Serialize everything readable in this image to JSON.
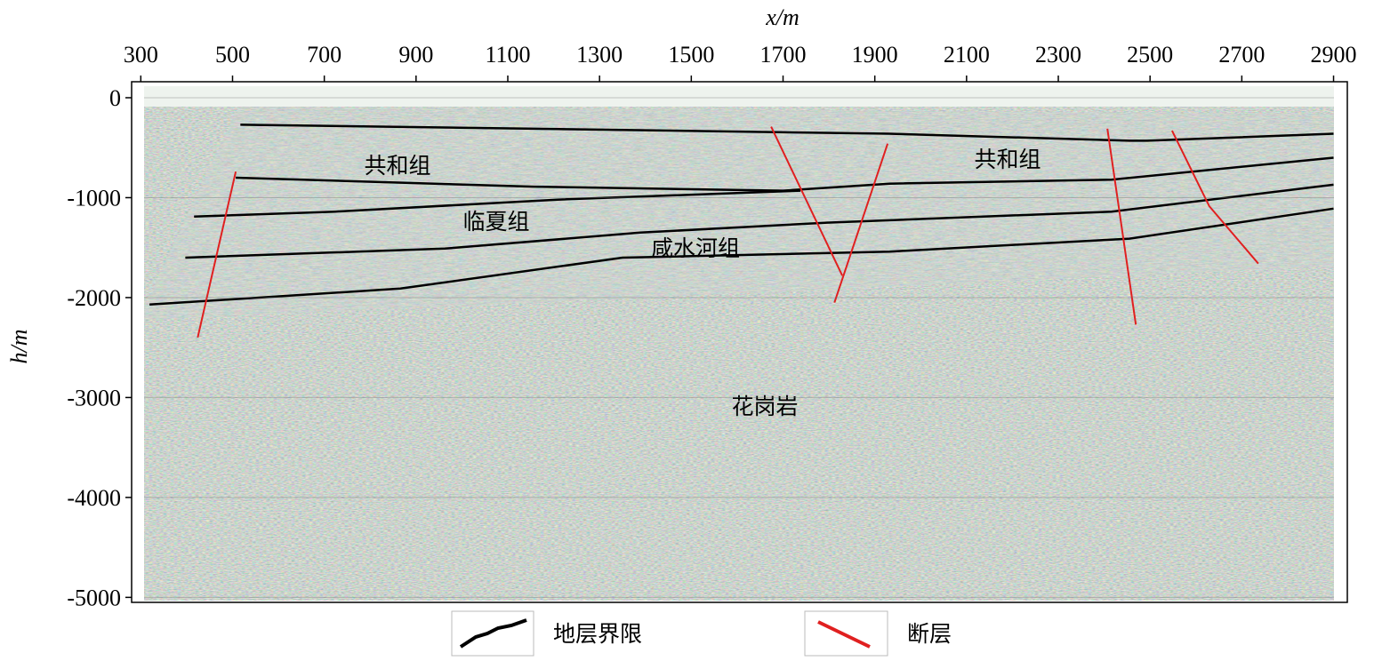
{
  "chart_data": {
    "type": "seismic-section",
    "xlabel": "x/m",
    "ylabel": "h/m",
    "xlim": [
      280,
      2930
    ],
    "xticks": [
      300,
      500,
      700,
      900,
      1100,
      1300,
      1500,
      1700,
      1900,
      2100,
      2300,
      2500,
      2700,
      2900
    ],
    "ylim": [
      -5050,
      160
    ],
    "yticks": [
      0,
      -1000,
      -2000,
      -3000,
      -4000,
      -5000
    ],
    "annotations": [
      "共和组",
      "临夏组",
      "咸水河组",
      "共和组",
      "花岗岩"
    ],
    "legend": [
      {
        "name": "地层界限",
        "color": "#000000"
      },
      {
        "name": "断层",
        "color": "#e02020"
      }
    ],
    "boundaries": [
      {
        "x": [
          517,
          1157,
          1932,
          2455,
          2494,
          2900
        ],
        "values": [
          -270,
          -310,
          -360,
          -430,
          -430,
          -360
        ]
      },
      {
        "x": [
          507,
          1157,
          1700,
          1932,
          2416,
          2900
        ],
        "values": [
          -800,
          -890,
          -930,
          -860,
          -820,
          -600
        ]
      },
      {
        "x": [
          416,
          724,
          1208,
          1738
        ],
        "values": [
          -1190,
          -1140,
          -1020,
          -930
        ]
      },
      {
        "x": [
          397,
          963,
          1389,
          1796,
          2416,
          2900
        ],
        "values": [
          -1600,
          -1510,
          -1350,
          -1250,
          -1140,
          -870
        ]
      },
      {
        "x": [
          319,
          866,
          1350,
          1932,
          2455,
          2900
        ],
        "values": [
          -2070,
          -1910,
          -1600,
          -1540,
          -1410,
          -1110
        ]
      }
    ],
    "faults": [
      {
        "x": [
          507,
          424
        ],
        "values": [
          -740,
          -2400
        ]
      },
      {
        "x": [
          1674,
          1829
        ],
        "values": [
          -290,
          -1780
        ]
      },
      {
        "x": [
          1928,
          1812
        ],
        "values": [
          -460,
          -2050
        ]
      },
      {
        "x": [
          2407,
          2469
        ],
        "values": [
          -310,
          -2270
        ]
      },
      {
        "x": [
          2548,
          2629,
          2736
        ],
        "values": [
          -330,
          -1085,
          -1660
        ]
      }
    ]
  }
}
